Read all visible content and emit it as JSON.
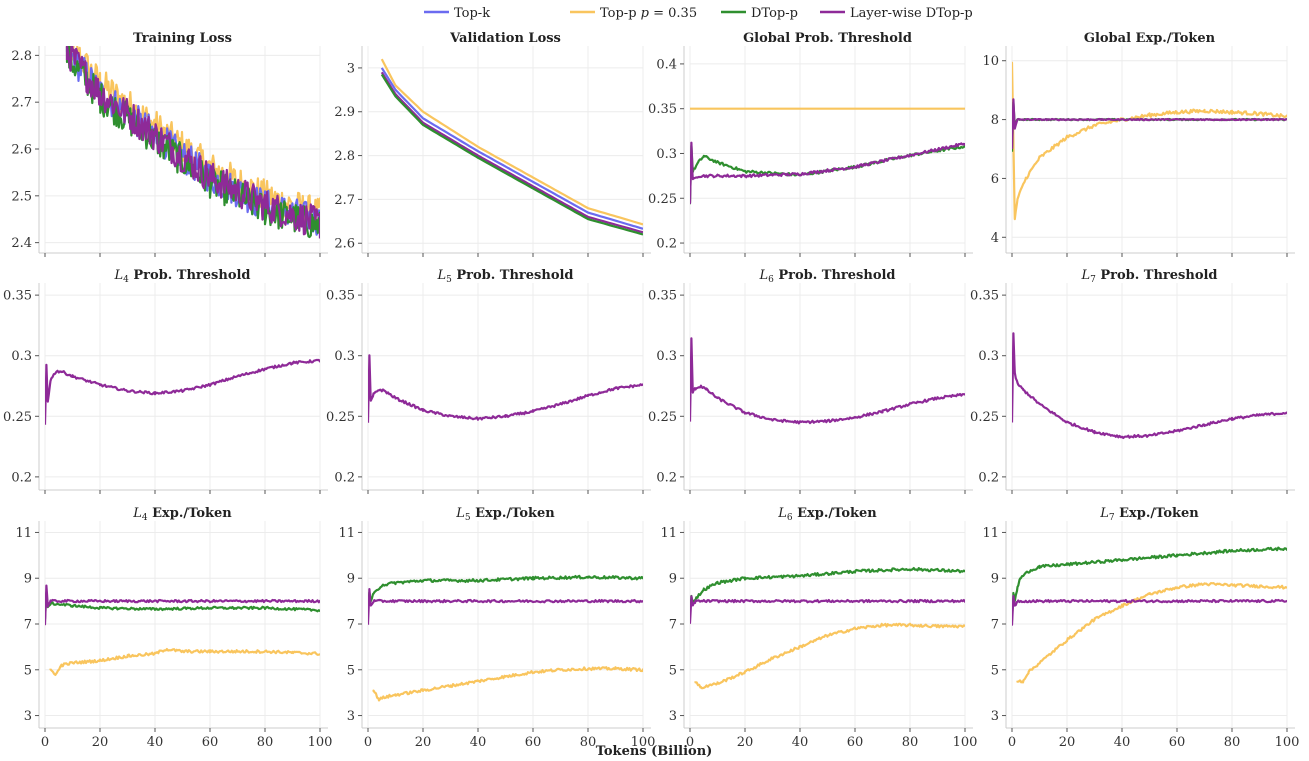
{
  "legend": {
    "items": [
      {
        "label": "Top-k",
        "color": "#6b6bf0"
      },
      {
        "label": "Top-p ",
        "italic": "p",
        "suffix": " = 0.35",
        "color": "#f9c55e"
      },
      {
        "label": "DTop-p",
        "color": "#2f8f2f"
      },
      {
        "label": "Layer-wise DTop-p",
        "color": "#8e2a98"
      }
    ]
  },
  "xlabel": "Tokens (Billion)",
  "chart_data": [
    {
      "type": "line",
      "title": "Training Loss",
      "xlim": [
        0,
        100
      ],
      "ylim": [
        2.38,
        2.82
      ],
      "xticks": [
        0,
        20,
        40,
        60,
        80,
        100
      ],
      "yticks": [
        2.4,
        2.5,
        2.6,
        2.7,
        2.8
      ],
      "series": [
        {
          "name": "Top-p",
          "color": "#f9c55e",
          "x": [
            8,
            20,
            40,
            60,
            80,
            100
          ],
          "y": [
            2.83,
            2.74,
            2.65,
            2.56,
            2.5,
            2.46
          ],
          "noise": 0.035
        },
        {
          "name": "Top-k",
          "color": "#6b6bf0",
          "x": [
            8,
            20,
            40,
            60,
            80,
            100
          ],
          "y": [
            2.81,
            2.72,
            2.63,
            2.54,
            2.48,
            2.445
          ],
          "noise": 0.035
        },
        {
          "name": "DTop-p",
          "color": "#2f8f2f",
          "x": [
            8,
            20,
            40,
            60,
            80,
            100
          ],
          "y": [
            2.8,
            2.71,
            2.62,
            2.53,
            2.47,
            2.435
          ],
          "noise": 0.035
        },
        {
          "name": "Layer-wise DTop-p",
          "color": "#8e2a98",
          "x": [
            8,
            20,
            40,
            60,
            80,
            100
          ],
          "y": [
            2.81,
            2.72,
            2.63,
            2.54,
            2.48,
            2.44
          ],
          "noise": 0.035
        }
      ]
    },
    {
      "type": "line",
      "title": "Validation Loss",
      "xlim": [
        0,
        100
      ],
      "ylim": [
        2.58,
        3.05
      ],
      "xticks": [
        0,
        20,
        40,
        60,
        80,
        100
      ],
      "yticks": [
        2.6,
        2.7,
        2.8,
        2.9,
        3.0
      ],
      "ytick_labels": [
        "2.6",
        "2.7",
        "2.8",
        "2.9",
        "3"
      ],
      "series": [
        {
          "name": "Top-p",
          "color": "#f9c55e",
          "x": [
            5,
            10,
            20,
            40,
            60,
            80,
            100
          ],
          "y": [
            3.02,
            2.96,
            2.9,
            2.82,
            2.75,
            2.68,
            2.643
          ],
          "noise": 0
        },
        {
          "name": "Top-k",
          "color": "#6b6bf0",
          "x": [
            5,
            10,
            20,
            40,
            60,
            80,
            100
          ],
          "y": [
            3.0,
            2.95,
            2.885,
            2.81,
            2.74,
            2.67,
            2.633
          ],
          "noise": 0
        },
        {
          "name": "Layer-wise DTop-p",
          "color": "#8e2a98",
          "x": [
            5,
            10,
            20,
            40,
            60,
            80,
            100
          ],
          "y": [
            2.99,
            2.94,
            2.875,
            2.8,
            2.73,
            2.66,
            2.625
          ],
          "noise": 0
        },
        {
          "name": "DTop-p",
          "color": "#2f8f2f",
          "x": [
            5,
            10,
            20,
            40,
            60,
            80,
            100
          ],
          "y": [
            2.985,
            2.935,
            2.87,
            2.795,
            2.725,
            2.655,
            2.62
          ],
          "noise": 0
        }
      ]
    },
    {
      "type": "line",
      "title": "Global Prob. Threshold",
      "xlim": [
        0,
        100
      ],
      "ylim": [
        0.19,
        0.42
      ],
      "xticks": [
        0,
        20,
        40,
        60,
        80,
        100
      ],
      "yticks": [
        0.2,
        0.25,
        0.3,
        0.35,
        0.4
      ],
      "series": [
        {
          "name": "Top-p",
          "color": "#f9c55e",
          "x": [
            0,
            100
          ],
          "y": [
            0.35,
            0.35
          ],
          "noise": 0
        },
        {
          "name": "DTop-p",
          "color": "#2f8f2f",
          "x": [
            0,
            0.5,
            1,
            3,
            5,
            10,
            20,
            40,
            60,
            80,
            100
          ],
          "y": [
            0.245,
            0.31,
            0.28,
            0.29,
            0.297,
            0.29,
            0.28,
            0.276,
            0.285,
            0.298,
            0.308
          ],
          "noise": 0.0015
        },
        {
          "name": "Layer-wise DTop-p",
          "color": "#8e2a98",
          "x": [
            0,
            0.5,
            1,
            3,
            10,
            20,
            40,
            60,
            80,
            100
          ],
          "y": [
            0.245,
            0.312,
            0.27,
            0.275,
            0.275,
            0.275,
            0.277,
            0.285,
            0.298,
            0.311
          ],
          "noise": 0.0015
        }
      ]
    },
    {
      "type": "line",
      "title": "Global Exp./Token",
      "xlim": [
        0,
        100
      ],
      "ylim": [
        3.5,
        10.5
      ],
      "xticks": [
        0,
        20,
        40,
        60,
        80,
        100
      ],
      "yticks": [
        4,
        6,
        8,
        10
      ],
      "series": [
        {
          "name": "Top-p",
          "color": "#f9c55e",
          "x": [
            0,
            1,
            2,
            5,
            10,
            20,
            30,
            40,
            50,
            60,
            70,
            80,
            90,
            100
          ],
          "y": [
            9.9,
            4.6,
            5.3,
            6.0,
            6.7,
            7.4,
            7.8,
            8.0,
            8.15,
            8.25,
            8.3,
            8.25,
            8.2,
            8.1
          ],
          "noise": 0.06
        },
        {
          "name": "DTop-p",
          "color": "#2f8f2f",
          "x": [
            0,
            0.5,
            1,
            2,
            100
          ],
          "y": [
            6.9,
            8.6,
            7.8,
            8.0,
            8.0
          ],
          "noise": 0.02
        },
        {
          "name": "Layer-wise DTop-p",
          "color": "#8e2a98",
          "x": [
            0,
            0.5,
            1,
            2,
            100
          ],
          "y": [
            7.0,
            8.7,
            7.7,
            8.0,
            8.0
          ],
          "noise": 0.02
        }
      ]
    },
    {
      "type": "line",
      "title": "L4 Prob. Threshold",
      "title_sub": "4",
      "title_rest": " Prob. Threshold",
      "xlim": [
        0,
        100
      ],
      "ylim": [
        0.19,
        0.36
      ],
      "xticks": [
        0,
        20,
        40,
        60,
        80,
        100
      ],
      "yticks": [
        0.2,
        0.25,
        0.3,
        0.35
      ],
      "series": [
        {
          "name": "Layer-wise DTop-p",
          "color": "#8e2a98",
          "x": [
            0,
            0.5,
            1,
            2,
            4,
            6,
            10,
            20,
            30,
            40,
            50,
            60,
            70,
            80,
            90,
            100
          ],
          "y": [
            0.243,
            0.292,
            0.262,
            0.28,
            0.287,
            0.287,
            0.283,
            0.276,
            0.271,
            0.269,
            0.271,
            0.276,
            0.283,
            0.289,
            0.294,
            0.296
          ],
          "noise": 0.001
        }
      ]
    },
    {
      "type": "line",
      "title": "L5 Prob. Threshold",
      "title_sub": "5",
      "title_rest": " Prob. Threshold",
      "xlim": [
        0,
        100
      ],
      "ylim": [
        0.19,
        0.36
      ],
      "xticks": [
        0,
        20,
        40,
        60,
        80,
        100
      ],
      "yticks": [
        0.2,
        0.25,
        0.3,
        0.35
      ],
      "series": [
        {
          "name": "Layer-wise DTop-p",
          "color": "#8e2a98",
          "x": [
            0,
            0.5,
            1,
            2,
            4,
            6,
            10,
            20,
            30,
            40,
            50,
            60,
            70,
            80,
            90,
            100
          ],
          "y": [
            0.245,
            0.3,
            0.262,
            0.268,
            0.272,
            0.271,
            0.265,
            0.255,
            0.25,
            0.248,
            0.25,
            0.254,
            0.26,
            0.267,
            0.273,
            0.276
          ],
          "noise": 0.001
        }
      ]
    },
    {
      "type": "line",
      "title": "L6 Prob. Threshold",
      "title_sub": "6",
      "title_rest": " Prob. Threshold",
      "xlim": [
        0,
        100
      ],
      "ylim": [
        0.19,
        0.36
      ],
      "xticks": [
        0,
        20,
        40,
        60,
        80,
        100
      ],
      "yticks": [
        0.2,
        0.25,
        0.3,
        0.35
      ],
      "series": [
        {
          "name": "Layer-wise DTop-p",
          "color": "#8e2a98",
          "x": [
            0,
            0.5,
            1,
            2,
            4,
            6,
            10,
            20,
            30,
            40,
            50,
            60,
            70,
            80,
            90,
            100
          ],
          "y": [
            0.245,
            0.314,
            0.27,
            0.273,
            0.275,
            0.272,
            0.265,
            0.253,
            0.247,
            0.245,
            0.246,
            0.249,
            0.254,
            0.26,
            0.265,
            0.268
          ],
          "noise": 0.001
        }
      ]
    },
    {
      "type": "line",
      "title": "L7 Prob. Threshold",
      "title_sub": "7",
      "title_rest": " Prob. Threshold",
      "xlim": [
        0,
        100
      ],
      "ylim": [
        0.19,
        0.36
      ],
      "xticks": [
        0,
        20,
        40,
        60,
        80,
        100
      ],
      "yticks": [
        0.2,
        0.25,
        0.3,
        0.35
      ],
      "series": [
        {
          "name": "Layer-wise DTop-p",
          "color": "#8e2a98",
          "x": [
            0,
            0.5,
            1,
            2,
            4,
            10,
            20,
            30,
            40,
            50,
            60,
            70,
            80,
            90,
            100
          ],
          "y": [
            0.245,
            0.319,
            0.285,
            0.277,
            0.272,
            0.26,
            0.245,
            0.237,
            0.233,
            0.234,
            0.238,
            0.243,
            0.248,
            0.251,
            0.253
          ],
          "noise": 0.001
        }
      ]
    },
    {
      "type": "line",
      "title": "L4 Exp./Token",
      "title_sub": "4",
      "title_rest": " Exp./Token",
      "xlim": [
        0,
        100
      ],
      "ylim": [
        2.5,
        11.5
      ],
      "xticks": [
        0,
        20,
        40,
        60,
        80,
        100
      ],
      "yticks": [
        3,
        5,
        7,
        9,
        11
      ],
      "series": [
        {
          "name": "Top-p",
          "color": "#f9c55e",
          "x": [
            2,
            4,
            6,
            10,
            20,
            30,
            40,
            44,
            50,
            60,
            70,
            80,
            90,
            100
          ],
          "y": [
            5.0,
            4.8,
            5.2,
            5.3,
            5.4,
            5.6,
            5.7,
            5.9,
            5.8,
            5.8,
            5.8,
            5.8,
            5.75,
            5.7
          ],
          "noise": 0.06
        },
        {
          "name": "DTop-p",
          "color": "#2f8f2f",
          "x": [
            0,
            0.5,
            1,
            2,
            10,
            20,
            40,
            60,
            80,
            100
          ],
          "y": [
            7.2,
            8.4,
            7.7,
            7.9,
            7.8,
            7.7,
            7.65,
            7.7,
            7.7,
            7.6
          ],
          "noise": 0.05
        },
        {
          "name": "Layer-wise DTop-p",
          "color": "#8e2a98",
          "x": [
            0,
            0.5,
            1,
            2,
            100
          ],
          "y": [
            7.0,
            8.7,
            7.8,
            8.0,
            8.0
          ],
          "noise": 0.05
        }
      ]
    },
    {
      "type": "line",
      "title": "L5 Exp./Token",
      "title_sub": "5",
      "title_rest": " Exp./Token",
      "xlim": [
        0,
        100
      ],
      "ylim": [
        2.5,
        11.5
      ],
      "xticks": [
        0,
        20,
        40,
        60,
        80,
        100
      ],
      "yticks": [
        3,
        5,
        7,
        9,
        11
      ],
      "series": [
        {
          "name": "Top-p",
          "color": "#f9c55e",
          "x": [
            2,
            4,
            6,
            10,
            20,
            30,
            40,
            50,
            60,
            70,
            80,
            90,
            100
          ],
          "y": [
            4.1,
            3.7,
            3.8,
            3.9,
            4.1,
            4.3,
            4.5,
            4.7,
            4.9,
            5.0,
            5.05,
            5.05,
            5.0
          ],
          "noise": 0.06
        },
        {
          "name": "DTop-p",
          "color": "#2f8f2f",
          "x": [
            0,
            0.5,
            1,
            2,
            5,
            10,
            20,
            40,
            60,
            80,
            100
          ],
          "y": [
            7.6,
            8.4,
            8.0,
            8.3,
            8.7,
            8.8,
            8.9,
            8.9,
            9.0,
            9.05,
            9.0
          ],
          "noise": 0.06
        },
        {
          "name": "Layer-wise DTop-p",
          "color": "#8e2a98",
          "x": [
            0,
            0.5,
            1,
            2,
            100
          ],
          "y": [
            7.0,
            8.5,
            7.8,
            8.0,
            8.0
          ],
          "noise": 0.05
        }
      ]
    },
    {
      "type": "line",
      "title": "L6 Exp./Token",
      "title_sub": "6",
      "title_rest": " Exp./Token",
      "xlim": [
        0,
        100
      ],
      "ylim": [
        2.5,
        11.5
      ],
      "xticks": [
        0,
        20,
        40,
        60,
        80,
        100
      ],
      "yticks": [
        3,
        5,
        7,
        9,
        11
      ],
      "series": [
        {
          "name": "Top-p",
          "color": "#f9c55e",
          "x": [
            2,
            4,
            6,
            10,
            20,
            30,
            40,
            50,
            60,
            70,
            80,
            90,
            100
          ],
          "y": [
            4.5,
            4.2,
            4.3,
            4.4,
            4.9,
            5.5,
            6.0,
            6.5,
            6.8,
            6.95,
            6.95,
            6.9,
            6.9
          ],
          "noise": 0.06
        },
        {
          "name": "DTop-p",
          "color": "#2f8f2f",
          "x": [
            0,
            0.5,
            1,
            2,
            5,
            10,
            20,
            40,
            60,
            80,
            100
          ],
          "y": [
            7.6,
            8.2,
            7.9,
            8.1,
            8.5,
            8.8,
            9.0,
            9.1,
            9.3,
            9.4,
            9.3
          ],
          "noise": 0.06
        },
        {
          "name": "Layer-wise DTop-p",
          "color": "#8e2a98",
          "x": [
            0,
            0.5,
            1,
            2,
            100
          ],
          "y": [
            7.0,
            8.2,
            7.8,
            8.0,
            8.0
          ],
          "noise": 0.05
        }
      ]
    },
    {
      "type": "line",
      "title": "L7 Exp./Token",
      "title_sub": "7",
      "title_rest": " Exp./Token",
      "xlim": [
        0,
        100
      ],
      "ylim": [
        2.5,
        11.5
      ],
      "xticks": [
        0,
        20,
        40,
        60,
        80,
        100
      ],
      "yticks": [
        3,
        5,
        7,
        9,
        11
      ],
      "series": [
        {
          "name": "Top-p",
          "color": "#f9c55e",
          "x": [
            2,
            4,
            6,
            10,
            20,
            30,
            40,
            50,
            60,
            70,
            80,
            90,
            100
          ],
          "y": [
            4.5,
            4.5,
            4.9,
            5.3,
            6.3,
            7.2,
            7.8,
            8.3,
            8.6,
            8.75,
            8.7,
            8.65,
            8.6
          ],
          "noise": 0.06
        },
        {
          "name": "DTop-p",
          "color": "#2f8f2f",
          "x": [
            0,
            0.5,
            1,
            2,
            3,
            6,
            10,
            20,
            40,
            60,
            80,
            100
          ],
          "y": [
            7.2,
            8.3,
            8.0,
            8.6,
            9.0,
            9.3,
            9.5,
            9.6,
            9.8,
            10.0,
            10.2,
            10.3
          ],
          "noise": 0.06
        },
        {
          "name": "Layer-wise DTop-p",
          "color": "#8e2a98",
          "x": [
            0,
            0.5,
            1,
            2,
            100
          ],
          "y": [
            7.0,
            8.2,
            7.8,
            8.0,
            8.0
          ],
          "noise": 0.05
        }
      ]
    }
  ]
}
